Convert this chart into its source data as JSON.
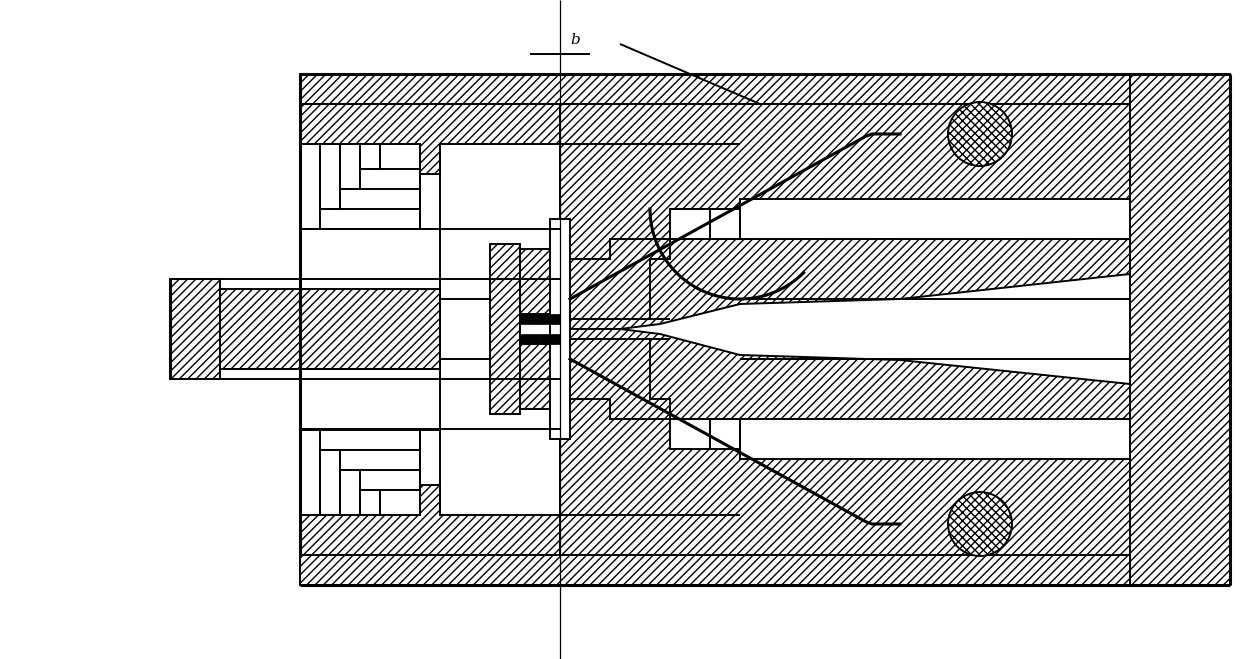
{
  "bg": "#ffffff",
  "lc": "#000000",
  "lw": 1.4,
  "lw_bold": 2.2,
  "lw_thin": 0.9,
  "label_b": "b",
  "figsize": [
    12.4,
    6.59
  ],
  "dpi": 100,
  "xlim": [
    0,
    124
  ],
  "ylim": [
    0,
    65.9
  ]
}
